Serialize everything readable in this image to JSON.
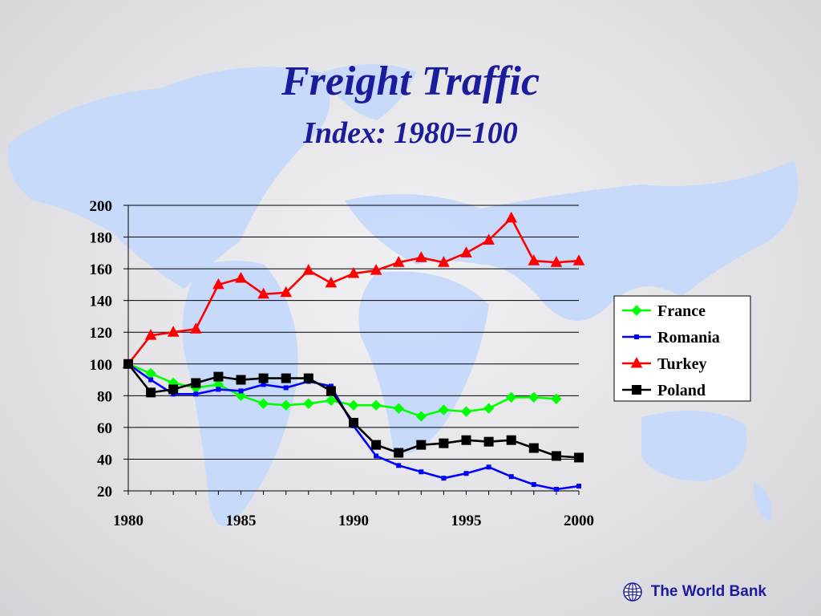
{
  "slide": {
    "title": "Freight Traffic",
    "subtitle": "Index: 1980=100",
    "footer_text": "The World Bank",
    "footer_icon": "globe-icon",
    "title_color": "#1b1b9c",
    "map_color": "#c6d9fb"
  },
  "chart_data": {
    "type": "line",
    "title": "Freight Traffic",
    "subtitle": "Index: 1980=100",
    "xlabel": "",
    "ylabel": "",
    "xlim": [
      1980,
      2000
    ],
    "ylim": [
      20,
      200
    ],
    "xticks": [
      1980,
      1985,
      1990,
      1995,
      2000
    ],
    "yticks": [
      20,
      40,
      60,
      80,
      100,
      120,
      140,
      160,
      180,
      200
    ],
    "grid": "horizontal",
    "legend_position": "right",
    "x": [
      1980,
      1981,
      1982,
      1983,
      1984,
      1985,
      1986,
      1987,
      1988,
      1989,
      1990,
      1991,
      1992,
      1993,
      1994,
      1995,
      1996,
      1997,
      1998,
      1999,
      2000
    ],
    "series": [
      {
        "name": "France",
        "color": "#00ff00",
        "marker": "diamond",
        "values": [
          100,
          94,
          88,
          85,
          87,
          80,
          75,
          74,
          75,
          77,
          74,
          74,
          72,
          67,
          71,
          70,
          72,
          79,
          79,
          78,
          null
        ]
      },
      {
        "name": "Romania",
        "color": "#0000ff",
        "marker": "small-square",
        "values": [
          100,
          90,
          81,
          81,
          84,
          83,
          87,
          85,
          89,
          86,
          61,
          42,
          36,
          32,
          28,
          31,
          35,
          29,
          24,
          21,
          23
        ]
      },
      {
        "name": "Turkey",
        "color": "#ff0000",
        "marker": "triangle",
        "values": [
          100,
          118,
          120,
          122,
          150,
          154,
          144,
          145,
          159,
          151,
          157,
          159,
          164,
          167,
          164,
          170,
          178,
          192,
          165,
          164,
          165
        ]
      },
      {
        "name": "Poland",
        "color": "#000000",
        "marker": "square",
        "values": [
          100,
          82,
          84,
          88,
          92,
          90,
          91,
          91,
          91,
          83,
          63,
          49,
          44,
          49,
          50,
          52,
          51,
          52,
          47,
          42,
          41
        ]
      }
    ]
  }
}
